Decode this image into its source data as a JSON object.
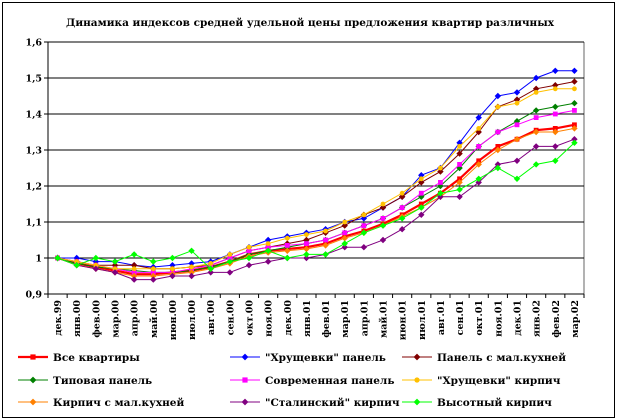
{
  "chart_data": {
    "type": "line",
    "title": "Динамика индексов средней удельной цены  предложения квартир различных",
    "xlabel": "",
    "ylabel": "",
    "ylim": [
      0.9,
      1.6
    ],
    "y_ticks": [
      "0,9",
      "1",
      "1,1",
      "1,2",
      "1,3",
      "1,4",
      "1,5",
      "1,6"
    ],
    "grid": "horizontal",
    "legend_position": "bottom",
    "categories": [
      "дек.99",
      "янв.00",
      "фев.00",
      "мар.00",
      "апр.00",
      "май.00",
      "июн.00",
      "июл.00",
      "авг.00",
      "сен.00",
      "окт.00",
      "ноя.00",
      "дек.00",
      "янв.01",
      "фев.01",
      "мар.01",
      "апр.01",
      "май.01",
      "июн.01",
      "июл.01",
      "авг.01",
      "сен.01",
      "окт.01",
      "ноя.01",
      "дек.01",
      "янв.02",
      "фев.02",
      "мар.02"
    ],
    "series": [
      {
        "name": "Все квартиры",
        "color": "#ff0000",
        "marker": "square",
        "values": [
          1.0,
          0.985,
          0.975,
          0.965,
          0.955,
          0.955,
          0.96,
          0.965,
          0.975,
          0.99,
          1.01,
          1.02,
          1.025,
          1.03,
          1.04,
          1.06,
          1.075,
          1.095,
          1.12,
          1.15,
          1.18,
          1.22,
          1.27,
          1.31,
          1.33,
          1.355,
          1.36,
          1.37
        ]
      },
      {
        "name": "\"Хрущевки\" панель",
        "color": "#0000ff",
        "marker": "diamond",
        "values": [
          1.0,
          1.0,
          0.99,
          0.99,
          0.98,
          0.975,
          0.98,
          0.985,
          0.99,
          1.01,
          1.03,
          1.05,
          1.06,
          1.07,
          1.08,
          1.1,
          1.11,
          1.14,
          1.17,
          1.23,
          1.25,
          1.32,
          1.39,
          1.45,
          1.46,
          1.5,
          1.52,
          1.52
        ]
      },
      {
        "name": "Панель с мал.кухней",
        "color": "#800000",
        "marker": "diamond",
        "values": [
          1.0,
          0.99,
          0.98,
          0.98,
          0.98,
          0.97,
          0.97,
          0.975,
          0.98,
          1.0,
          1.02,
          1.03,
          1.04,
          1.05,
          1.07,
          1.09,
          1.12,
          1.14,
          1.17,
          1.21,
          1.24,
          1.29,
          1.35,
          1.42,
          1.44,
          1.47,
          1.48,
          1.49
        ]
      },
      {
        "name": "Типовая панель",
        "color": "#008000",
        "marker": "diamond",
        "values": [
          1.0,
          0.985,
          0.975,
          0.97,
          0.965,
          0.96,
          0.96,
          0.965,
          0.975,
          0.99,
          1.01,
          1.02,
          1.03,
          1.04,
          1.05,
          1.07,
          1.09,
          1.11,
          1.14,
          1.17,
          1.2,
          1.25,
          1.31,
          1.35,
          1.38,
          1.41,
          1.42,
          1.43
        ]
      },
      {
        "name": "Современная панель",
        "color": "#ff00ff",
        "marker": "square",
        "values": [
          1.0,
          0.99,
          0.98,
          0.97,
          0.96,
          0.96,
          0.96,
          0.97,
          0.98,
          1.0,
          1.02,
          1.03,
          1.035,
          1.04,
          1.05,
          1.07,
          1.09,
          1.11,
          1.14,
          1.18,
          1.21,
          1.26,
          1.31,
          1.35,
          1.37,
          1.39,
          1.4,
          1.41
        ]
      },
      {
        "name": "\"Хрущевки\" кирпич",
        "color": "#ffc000",
        "marker": "circle",
        "values": [
          1.0,
          0.99,
          0.98,
          0.97,
          0.97,
          0.97,
          0.97,
          0.975,
          0.985,
          1.01,
          1.03,
          1.04,
          1.055,
          1.065,
          1.075,
          1.1,
          1.12,
          1.15,
          1.18,
          1.22,
          1.25,
          1.31,
          1.36,
          1.42,
          1.43,
          1.46,
          1.47,
          1.47
        ]
      },
      {
        "name": "Кирпич с мал.кухней",
        "color": "#ff8000",
        "marker": "diamond",
        "values": [
          1.0,
          0.98,
          0.97,
          0.96,
          0.95,
          0.95,
          0.955,
          0.96,
          0.97,
          0.985,
          1.005,
          1.015,
          1.02,
          1.025,
          1.035,
          1.055,
          1.07,
          1.09,
          1.115,
          1.14,
          1.17,
          1.21,
          1.26,
          1.3,
          1.33,
          1.35,
          1.35,
          1.36
        ]
      },
      {
        "name": "\"Сталинский\" кирпич",
        "color": "#800080",
        "marker": "diamond",
        "values": [
          1.0,
          0.98,
          0.97,
          0.96,
          0.94,
          0.94,
          0.95,
          0.95,
          0.96,
          0.96,
          0.98,
          0.99,
          1.0,
          1.0,
          1.01,
          1.03,
          1.03,
          1.05,
          1.08,
          1.12,
          1.17,
          1.17,
          1.21,
          1.26,
          1.27,
          1.31,
          1.31,
          1.33
        ]
      },
      {
        "name": "Высотный кирпич",
        "color": "#00ff00",
        "marker": "diamond",
        "values": [
          1.0,
          0.98,
          1.0,
          0.99,
          1.01,
          0.99,
          1.0,
          1.02,
          0.97,
          0.99,
          1.0,
          1.02,
          1.0,
          1.01,
          1.01,
          1.04,
          1.07,
          1.09,
          1.11,
          1.14,
          1.18,
          1.19,
          1.22,
          1.25,
          1.22,
          1.26,
          1.27,
          1.32
        ]
      }
    ]
  }
}
